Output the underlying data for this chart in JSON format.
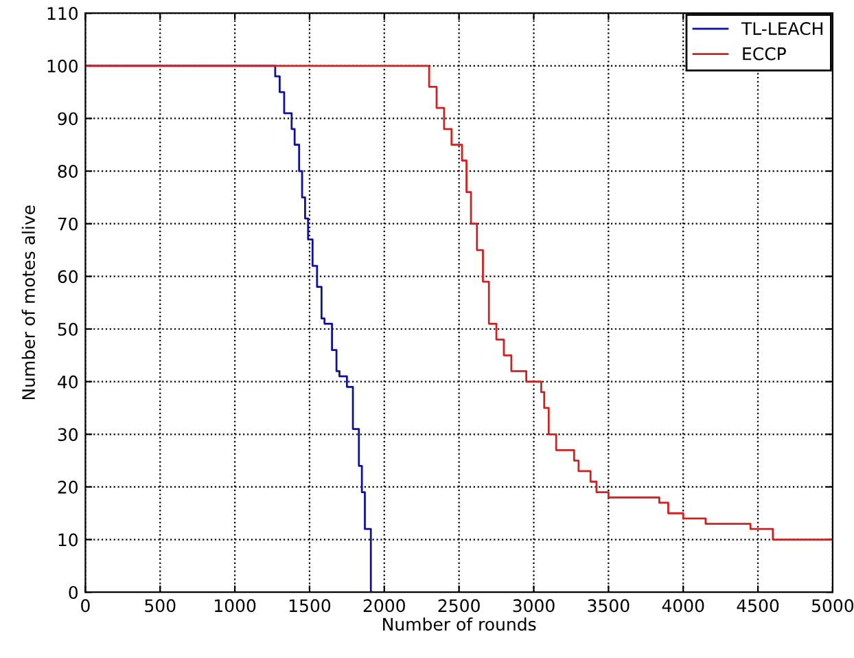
{
  "chart_data": {
    "type": "step",
    "xlabel": "Number of rounds",
    "ylabel": "Number of motes alive",
    "xlim": [
      0,
      5000
    ],
    "ylim": [
      0,
      110
    ],
    "xticks": [
      0,
      500,
      1000,
      1500,
      2000,
      2500,
      3000,
      3500,
      4000,
      4500,
      5000
    ],
    "yticks": [
      0,
      10,
      20,
      30,
      40,
      50,
      60,
      70,
      80,
      90,
      100,
      110
    ],
    "grid": true,
    "legend": "top right",
    "line_style": "solid",
    "marker": "none",
    "series": [
      {
        "name": "TL-LEACH",
        "color": "#1010a0",
        "x": [
          0,
          1270,
          1300,
          1330,
          1380,
          1400,
          1430,
          1450,
          1470,
          1490,
          1520,
          1550,
          1580,
          1600,
          1650,
          1680,
          1700,
          1750,
          1790,
          1830,
          1850,
          1870,
          1910,
          1920
        ],
        "values": [
          100,
          98,
          95,
          91,
          88,
          85,
          80,
          75,
          71,
          67,
          62,
          58,
          52,
          51,
          46,
          42,
          41,
          39,
          31,
          24,
          19,
          12,
          0,
          0
        ]
      },
      {
        "name": "ECCP",
        "color": "#d02020",
        "x": [
          0,
          2280,
          2300,
          2350,
          2400,
          2450,
          2520,
          2550,
          2580,
          2620,
          2660,
          2700,
          2750,
          2800,
          2850,
          2950,
          3050,
          3070,
          3100,
          3150,
          3270,
          3300,
          3380,
          3420,
          3500,
          3840,
          3900,
          4000,
          4150,
          4450,
          4600,
          5000
        ],
        "values": [
          100,
          100,
          96,
          92,
          88,
          85,
          82,
          76,
          70,
          65,
          59,
          51,
          48,
          45,
          42,
          40,
          38,
          35,
          30,
          27,
          25,
          23,
          21,
          19,
          18,
          17,
          15,
          14,
          13,
          12,
          10,
          10
        ]
      }
    ]
  }
}
